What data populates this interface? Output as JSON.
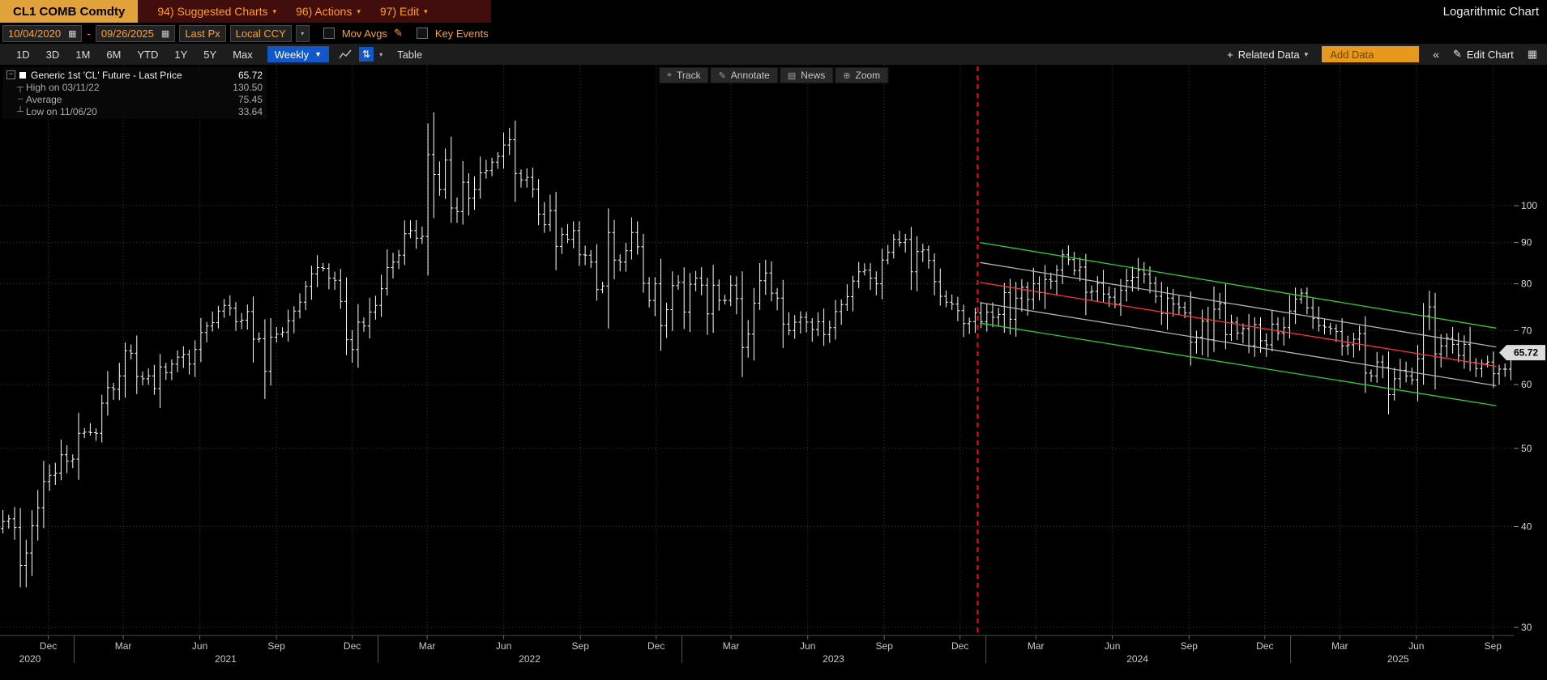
{
  "colors": {
    "amber": "#ff9f1a",
    "ticker_box": "#e2a23b",
    "highlight_blue": "#1257c8",
    "bar": "#ffffff",
    "event_red": "#ff0000",
    "channel_green": "#33cc33",
    "channel_gray": "#b3b3b3",
    "channel_red": "#ff3333"
  },
  "icons": {
    "chevron_down": "▾",
    "chevron_down_solid": "▼",
    "calendar": "▦",
    "pencil": "✎",
    "collapse": "«",
    "panel_grid": "▦",
    "plus": "+",
    "sort_arrows": "⇅",
    "minus": "−"
  },
  "title_bar": {
    "ticker": "CL1 COMB Comdty",
    "menus": [
      {
        "label": "94) Suggested Charts"
      },
      {
        "label": "96) Actions"
      },
      {
        "label": "97) Edit"
      }
    ],
    "chart_type_label": "Logarithmic Chart"
  },
  "settings_bar": {
    "start_date": "10/04/2020",
    "end_date": "09/26/2025",
    "separator": "-",
    "price_field": "Last Px",
    "currency": "Local CCY",
    "mov_avgs_label": "Mov Avgs",
    "key_events_label": "Key Events"
  },
  "period_bar": {
    "periods": [
      "1D",
      "3D",
      "1M",
      "6M",
      "YTD",
      "1Y",
      "5Y",
      "Max"
    ],
    "frequency": "Weekly",
    "table_label": "Table",
    "related_data_label": "Related Data",
    "add_data_label": "Add Data",
    "edit_chart_label": "Edit Chart"
  },
  "chart_toolbar": [
    {
      "icon": "⌖",
      "label": "Track"
    },
    {
      "icon": "✎",
      "label": "Annotate"
    },
    {
      "icon": "▤",
      "label": "News"
    },
    {
      "icon": "⊕",
      "label": "Zoom"
    }
  ],
  "legend": {
    "rows": [
      {
        "icon": "",
        "label": "Generic 1st 'CL' Future - Last Price",
        "value": "65.72"
      },
      {
        "icon": "┬",
        "label": "High on 03/11/22",
        "value": "130.50"
      },
      {
        "icon": "┄",
        "label": "Average",
        "value": "75.45"
      },
      {
        "icon": "┴",
        "label": "Low on 11/06/20",
        "value": "33.64"
      }
    ]
  },
  "chart_data": {
    "type": "ohlc-bar",
    "frequency": "weekly",
    "security": "CL1 COMB Comdty",
    "start_date": "2020-10-04",
    "end_date": "2025-09-26",
    "y_scale": "log",
    "y_ticks": [
      100,
      90,
      80,
      70,
      60,
      50,
      40,
      30
    ],
    "last_price": "65.72",
    "high": {
      "date_label": "03/11/22",
      "value": 130.5
    },
    "low": {
      "date_label": "11/06/20",
      "value": 33.64
    },
    "average": 75.45,
    "first_open": 39.8,
    "weekly_closes": [
      40.6,
      40.9,
      39.9,
      35.8,
      37.1,
      40.1,
      42.2,
      45.5,
      46.3,
      46.6,
      49.1,
      48.2,
      48.5,
      52.2,
      52.4,
      52.3,
      52.2,
      56.9,
      59.5,
      59.2,
      61.5,
      66.1,
      65.6,
      61.4,
      61.0,
      61.5,
      59.3,
      63.1,
      62.1,
      63.6,
      64.9,
      65.4,
      63.6,
      66.3,
      69.6,
      70.9,
      71.6,
      74.0,
      75.2,
      74.6,
      71.8,
      72.1,
      73.9,
      68.3,
      68.4,
      62.3,
      68.7,
      69.3,
      69.7,
      72.0,
      74.0,
      75.9,
      79.4,
      82.3,
      83.8,
      83.6,
      81.3,
      80.8,
      76.1,
      68.2,
      66.3,
      71.7,
      70.9,
      73.8,
      75.2,
      78.9,
      83.8,
      85.1,
      86.8,
      92.3,
      93.1,
      91.1,
      91.6,
      115.7,
      109.3,
      104.7,
      113.9,
      99.3,
      98.3,
      106.9,
      102.1,
      104.7,
      109.8,
      110.5,
      113.2,
      115.1,
      118.9,
      120.7,
      109.6,
      107.6,
      108.4,
      104.8,
      97.6,
      94.7,
      98.6,
      89.0,
      92.1,
      90.8,
      93.1,
      86.9,
      86.8,
      85.1,
      78.7,
      79.5,
      92.6,
      85.6,
      85.1,
      87.9,
      92.6,
      88.9,
      80.1,
      76.3,
      80.0,
      71.0,
      74.3,
      79.6,
      80.3,
      73.8,
      79.9,
      81.3,
      79.7,
      73.4,
      79.7,
      76.3,
      76.3,
      79.7,
      76.7,
      66.7,
      69.3,
      75.7,
      80.7,
      82.5,
      77.9,
      76.8,
      71.3,
      70.0,
      71.7,
      72.7,
      71.7,
      70.2,
      71.8,
      69.2,
      70.6,
      73.9,
      75.4,
      77.1,
      80.6,
      82.8,
      83.2,
      81.3,
      80.0,
      85.6,
      87.5,
      90.8,
      90.0,
      90.8,
      82.8,
      87.7,
      88.1,
      85.5,
      80.5,
      77.2,
      75.9,
      75.5,
      74.1,
      71.4,
      71.8,
      73.6,
      71.8,
      73.8,
      72.7,
      73.3,
      78.0,
      72.3,
      76.8,
      79.2,
      76.5,
      80.0,
      78.0,
      81.0,
      80.6,
      83.2,
      86.9,
      85.7,
      83.1,
      83.9,
      78.1,
      78.3,
      80.1,
      77.7,
      77.0,
      75.5,
      78.5,
      80.7,
      81.5,
      83.2,
      82.2,
      80.1,
      77.2,
      73.5,
      76.8,
      75.5,
      74.8,
      73.6,
      67.7,
      68.7,
      71.9,
      68.2,
      74.4,
      75.6,
      69.2,
      71.7,
      69.5,
      70.4,
      67.0,
      71.2,
      68.0,
      67.2,
      71.3,
      69.5,
      70.6,
      74.0,
      76.6,
      77.9,
      74.7,
      72.5,
      71.0,
      70.7,
      70.4,
      69.8,
      67.0,
      67.2,
      68.3,
      69.4,
      62.0,
      61.5,
      64.0,
      63.0,
      58.3,
      61.0,
      62.5,
      61.5,
      60.8,
      64.6,
      73.0,
      74.9,
      65.5,
      67.0,
      68.5,
      67.3,
      65.2,
      67.3,
      63.9,
      62.8,
      63.7,
      64.0,
      61.9,
      62.7,
      62.7,
      65.72
    ],
    "overrides": [
      {
        "index": 4,
        "low": 33.64
      },
      {
        "index": 73,
        "high": 126.4
      },
      {
        "index": 74,
        "high": 130.5,
        "low": 96.5
      },
      {
        "index": 234,
        "low": 58.6
      },
      {
        "index": 238,
        "low": 55.1
      },
      {
        "index": 245,
        "high": 78.4
      }
    ],
    "x_ticks": [
      {
        "date": "2020-12-01",
        "label": "Dec"
      },
      {
        "date": "2021-03-01",
        "label": "Mar"
      },
      {
        "date": "2021-06-01",
        "label": "Jun"
      },
      {
        "date": "2021-09-01",
        "label": "Sep"
      },
      {
        "date": "2021-12-01",
        "label": "Dec"
      },
      {
        "date": "2022-03-01",
        "label": "Mar"
      },
      {
        "date": "2022-06-01",
        "label": "Jun"
      },
      {
        "date": "2022-09-01",
        "label": "Sep"
      },
      {
        "date": "2022-12-01",
        "label": "Dec"
      },
      {
        "date": "2023-03-01",
        "label": "Mar"
      },
      {
        "date": "2023-06-01",
        "label": "Jun"
      },
      {
        "date": "2023-09-01",
        "label": "Sep"
      },
      {
        "date": "2023-12-01",
        "label": "Dec"
      },
      {
        "date": "2024-03-01",
        "label": "Mar"
      },
      {
        "date": "2024-06-01",
        "label": "Jun"
      },
      {
        "date": "2024-09-01",
        "label": "Sep"
      },
      {
        "date": "2024-12-01",
        "label": "Dec"
      },
      {
        "date": "2025-03-01",
        "label": "Mar"
      },
      {
        "date": "2025-06-01",
        "label": "Jun"
      },
      {
        "date": "2025-09-01",
        "label": "Sep"
      }
    ],
    "year_labels": [
      {
        "label": "2020",
        "date": "2020-11-09"
      },
      {
        "label": "2021",
        "date": "2021-07-02"
      },
      {
        "label": "2022",
        "date": "2022-07-02"
      },
      {
        "label": "2023",
        "date": "2023-07-02"
      },
      {
        "label": "2024",
        "date": "2024-07-01"
      },
      {
        "label": "2025",
        "date": "2025-05-10"
      }
    ],
    "year_boundaries": [
      "2021-01-01",
      "2022-01-01",
      "2023-01-01",
      "2024-01-01",
      "2025-01-01"
    ],
    "event_line": {
      "date": "2023-12-22",
      "color": "#ff0000"
    },
    "regression_channel": {
      "start_date": "2023-12-25",
      "end_date": "2025-09-05",
      "lines": [
        {
          "name": "channel-upper-outer",
          "color": "#33cc33",
          "start_value": 90.0,
          "end_value": 70.5
        },
        {
          "name": "channel-upper-inner",
          "color": "#b3b3b3",
          "start_value": 85.0,
          "end_value": 66.8
        },
        {
          "name": "channel-median",
          "color": "#ff3333",
          "start_value": 80.3,
          "end_value": 63.2
        },
        {
          "name": "channel-lower-inner",
          "color": "#b3b3b3",
          "start_value": 75.8,
          "end_value": 59.8
        },
        {
          "name": "channel-lower-outer",
          "color": "#33cc33",
          "start_value": 71.5,
          "end_value": 56.5
        }
      ]
    }
  }
}
